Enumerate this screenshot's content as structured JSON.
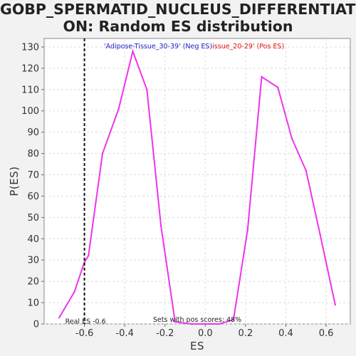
{
  "chart_data": {
    "type": "line",
    "title_lines": [
      "GOBP_SPERMATID_NUCLEUS_DIFFERENTIATI",
      "ON: Random ES distribution"
    ],
    "xlabel": "ES",
    "ylabel": "P(ES)",
    "xlim": [
      -0.8,
      0.72
    ],
    "ylim": [
      0,
      134
    ],
    "xticks": [
      -0.6,
      -0.4,
      -0.2,
      0.0,
      0.2,
      0.4,
      0.6
    ],
    "xtick_labels": [
      "-0.6",
      "-0.4",
      "-0.2",
      "0.0",
      "0.2",
      "0.4",
      "0.6"
    ],
    "yticks": [
      0,
      10,
      20,
      30,
      40,
      50,
      60,
      70,
      80,
      90,
      100,
      110,
      120,
      130
    ],
    "grid": true,
    "legend": [
      {
        "label": "'Adipose-Tissue_30-39' (Neg ES)",
        "color": "#2222cc"
      },
      {
        "label": "issue_20-29' (Pos ES)",
        "color": "#dd1111"
      }
    ],
    "legend_placement": "top-center",
    "series": [
      {
        "color": "#ee33ee",
        "points": [
          [
            -0.725,
            3
          ],
          [
            -0.65,
            15
          ],
          [
            -0.6,
            29
          ],
          [
            -0.58,
            32
          ],
          [
            -0.51,
            80
          ],
          [
            -0.43,
            101
          ],
          [
            -0.36,
            128
          ],
          [
            -0.29,
            110
          ],
          [
            -0.22,
            46
          ],
          [
            -0.15,
            1
          ],
          [
            -0.07,
            0
          ],
          [
            0.0,
            0
          ],
          [
            0.07,
            0
          ],
          [
            0.14,
            2
          ],
          [
            0.21,
            44
          ],
          [
            0.28,
            116
          ],
          [
            0.36,
            111
          ],
          [
            0.43,
            87
          ],
          [
            0.5,
            72
          ],
          [
            0.57,
            42
          ],
          [
            0.645,
            9
          ]
        ]
      }
    ],
    "real_es": {
      "value": -0.6,
      "label": "Real ES -0.6"
    },
    "annotation": "Sets with pos scores: 48%"
  }
}
